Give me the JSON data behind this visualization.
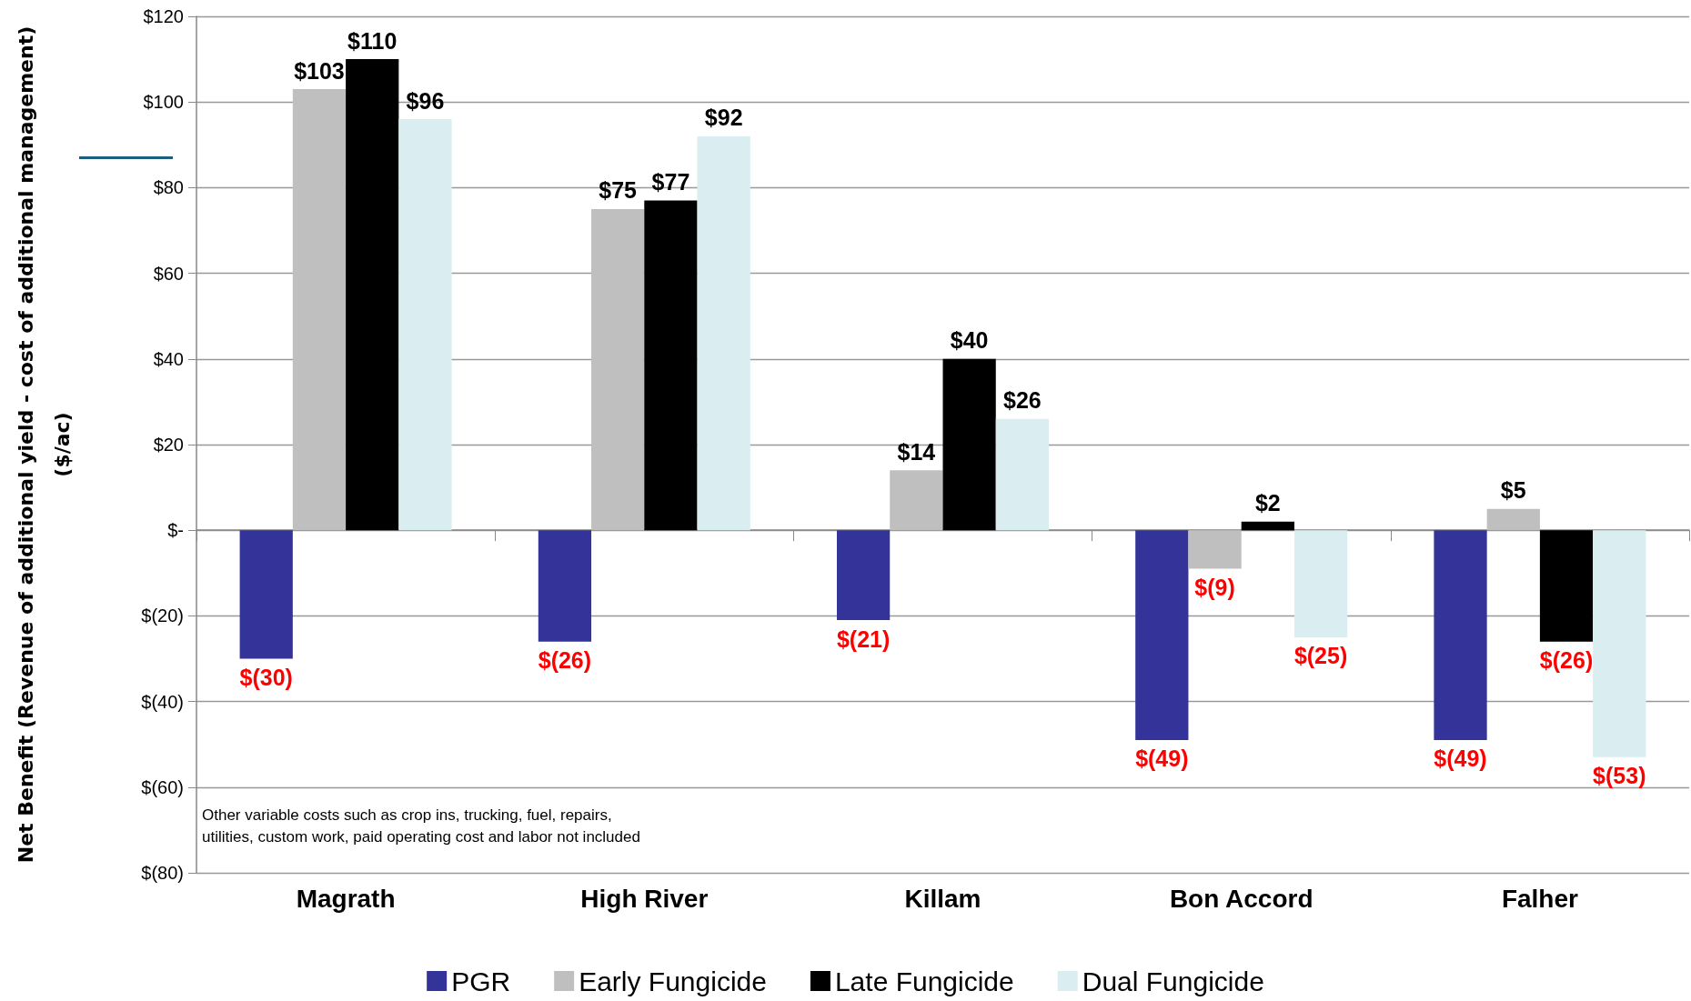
{
  "chart_data": {
    "type": "bar",
    "ylabel": "Net Benefit (Revenue of additional yield - cost of additional management)\n($/ac)",
    "categories": [
      "Magrath",
      "High River",
      "Killam",
      "Bon Accord",
      "Falher"
    ],
    "series": [
      {
        "name": "PGR",
        "color": "#333399",
        "values": [
          -30,
          -26,
          -21,
          -49,
          -49
        ],
        "value_labels": [
          "$(30)",
          "$(26)",
          "$(21)",
          "$(49)",
          "$(49)"
        ]
      },
      {
        "name": "Early Fungicide",
        "color": "#bfbfbf",
        "values": [
          103,
          75,
          14,
          -9,
          5
        ],
        "value_labels": [
          "$103",
          "$75",
          "$14",
          "$(9)",
          "$5"
        ]
      },
      {
        "name": "Late Fungicide",
        "color": "#000000",
        "values": [
          110,
          77,
          40,
          2,
          -26
        ],
        "value_labels": [
          "$110",
          "$77",
          "$40",
          "$2",
          "$(26)"
        ]
      },
      {
        "name": "Dual Fungicide",
        "color": "#daedf0",
        "values": [
          96,
          92,
          26,
          -25,
          -53
        ],
        "value_labels": [
          "$96",
          "$92",
          "$26",
          "$(25)",
          "$(53)"
        ]
      }
    ],
    "ylim": [
      -80,
      120
    ],
    "yticks": [
      {
        "value": -80,
        "label": "$(80)"
      },
      {
        "value": -60,
        "label": "$(60)"
      },
      {
        "value": -40,
        "label": "$(40)"
      },
      {
        "value": -20,
        "label": "$(20)"
      },
      {
        "value": 0,
        "label": "$-"
      },
      {
        "value": 20,
        "label": "$20"
      },
      {
        "value": 40,
        "label": "$40"
      },
      {
        "value": 60,
        "label": "$60"
      },
      {
        "value": 80,
        "label": "$80"
      },
      {
        "value": 100,
        "label": "$100"
      },
      {
        "value": 120,
        "label": "$120"
      }
    ],
    "grid": "y",
    "legend": "bottom",
    "annotations": [
      "Other variable costs such as crop ins, trucking, fuel, repairs,\nutilities, custom work, paid operating cost and labor not included"
    ]
  }
}
